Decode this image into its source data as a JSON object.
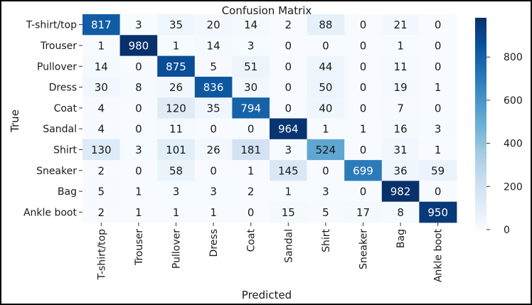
{
  "chart_data": {
    "type": "heatmap",
    "title": "Confusion Matrix",
    "xlabel": "Predicted",
    "ylabel": "True",
    "x_categories": [
      "T-shirt/top",
      "Trouser",
      "Pullover",
      "Dress",
      "Coat",
      "Sandal",
      "Shirt",
      "Sneaker",
      "Bag",
      "Ankle boot"
    ],
    "y_categories": [
      "T-shirt/top",
      "Trouser",
      "Pullover",
      "Dress",
      "Coat",
      "Sandal",
      "Shirt",
      "Sneaker",
      "Bag",
      "Ankle boot"
    ],
    "values": [
      [
        817,
        3,
        35,
        20,
        14,
        2,
        88,
        0,
        21,
        0
      ],
      [
        1,
        980,
        1,
        14,
        3,
        0,
        0,
        0,
        1,
        0
      ],
      [
        14,
        0,
        875,
        5,
        51,
        0,
        44,
        0,
        11,
        0
      ],
      [
        30,
        8,
        26,
        836,
        30,
        0,
        50,
        0,
        19,
        1
      ],
      [
        4,
        0,
        120,
        35,
        794,
        0,
        40,
        0,
        7,
        0
      ],
      [
        4,
        0,
        11,
        0,
        0,
        964,
        1,
        1,
        16,
        3
      ],
      [
        130,
        3,
        101,
        26,
        181,
        3,
        524,
        0,
        31,
        1
      ],
      [
        2,
        0,
        58,
        0,
        1,
        145,
        0,
        699,
        36,
        59
      ],
      [
        5,
        1,
        3,
        3,
        2,
        1,
        3,
        0,
        982,
        0
      ],
      [
        2,
        1,
        1,
        1,
        0,
        15,
        5,
        17,
        8,
        950
      ]
    ],
    "colorbar": {
      "ticks": [
        0,
        200,
        400,
        600,
        800
      ],
      "range": [
        0,
        982
      ],
      "colormap": "Blues"
    }
  }
}
